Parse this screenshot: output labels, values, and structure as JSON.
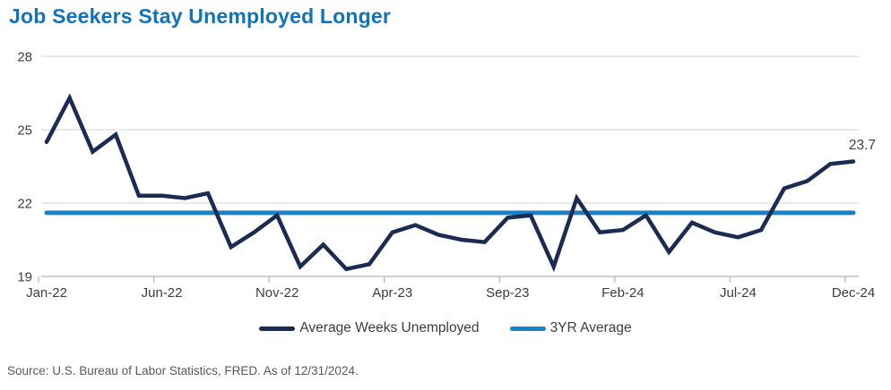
{
  "header": {
    "title": "Job Seekers Stay Unemployed Longer"
  },
  "colors": {
    "title": "#1173b9",
    "series_main": "#1c2b52",
    "series_average": "#1b80c4",
    "gridline": "#dcdcdc",
    "axis_line": "#b3b3b3",
    "axis_text": "#3d3d3d",
    "annotation_text": "#3f3f3f"
  },
  "legend": {
    "items": [
      {
        "label": "Average Weeks Unemployed",
        "color": "#1c2b52"
      },
      {
        "label": "3YR Average",
        "color": "#1b80c4"
      }
    ]
  },
  "footer": {
    "source": "Source: U.S. Bureau of Labor Statistics, FRED. As of 12/31/2024."
  },
  "chart_data": {
    "type": "line",
    "title": "Job Seekers Stay Unemployed Longer",
    "xlabel": "",
    "ylabel": "",
    "ylim": [
      19,
      28
    ],
    "y_ticks": [
      28,
      25,
      22,
      19
    ],
    "grid": "horizontal",
    "legend_position": "bottom",
    "x": [
      "Jan-22",
      "Feb-22",
      "Mar-22",
      "Apr-22",
      "May-22",
      "Jun-22",
      "Jul-22",
      "Aug-22",
      "Sep-22",
      "Oct-22",
      "Nov-22",
      "Dec-22",
      "Jan-23",
      "Feb-23",
      "Mar-23",
      "Apr-23",
      "May-23",
      "Jun-23",
      "Jul-23",
      "Aug-23",
      "Sep-23",
      "Oct-23",
      "Nov-23",
      "Dec-23",
      "Jan-24",
      "Feb-24",
      "Mar-24",
      "Apr-24",
      "May-24",
      "Jun-24",
      "Jul-24",
      "Aug-24",
      "Sep-24",
      "Oct-24",
      "Nov-24",
      "Dec-24"
    ],
    "x_tick_labels": [
      "Jan-22",
      "Jun-22",
      "Nov-22",
      "Apr-23",
      "Sep-23",
      "Feb-24",
      "Jul-24",
      "Dec-24"
    ],
    "series": [
      {
        "name": "Average Weeks Unemployed",
        "color": "#1c2b52",
        "values": [
          24.5,
          26.3,
          24.1,
          24.8,
          22.3,
          22.3,
          22.2,
          22.4,
          20.2,
          20.8,
          21.5,
          19.4,
          20.3,
          19.3,
          19.5,
          20.8,
          21.1,
          20.7,
          20.5,
          20.4,
          21.4,
          21.5,
          19.4,
          22.2,
          20.8,
          20.9,
          21.5,
          20.0,
          21.2,
          20.8,
          20.6,
          20.9,
          22.6,
          22.9,
          23.6,
          23.7
        ]
      },
      {
        "name": "3YR Average",
        "color": "#1b80c4",
        "type": "constant",
        "value": 21.6
      }
    ],
    "annotation": {
      "text": "23.7",
      "x_index": 35
    }
  }
}
